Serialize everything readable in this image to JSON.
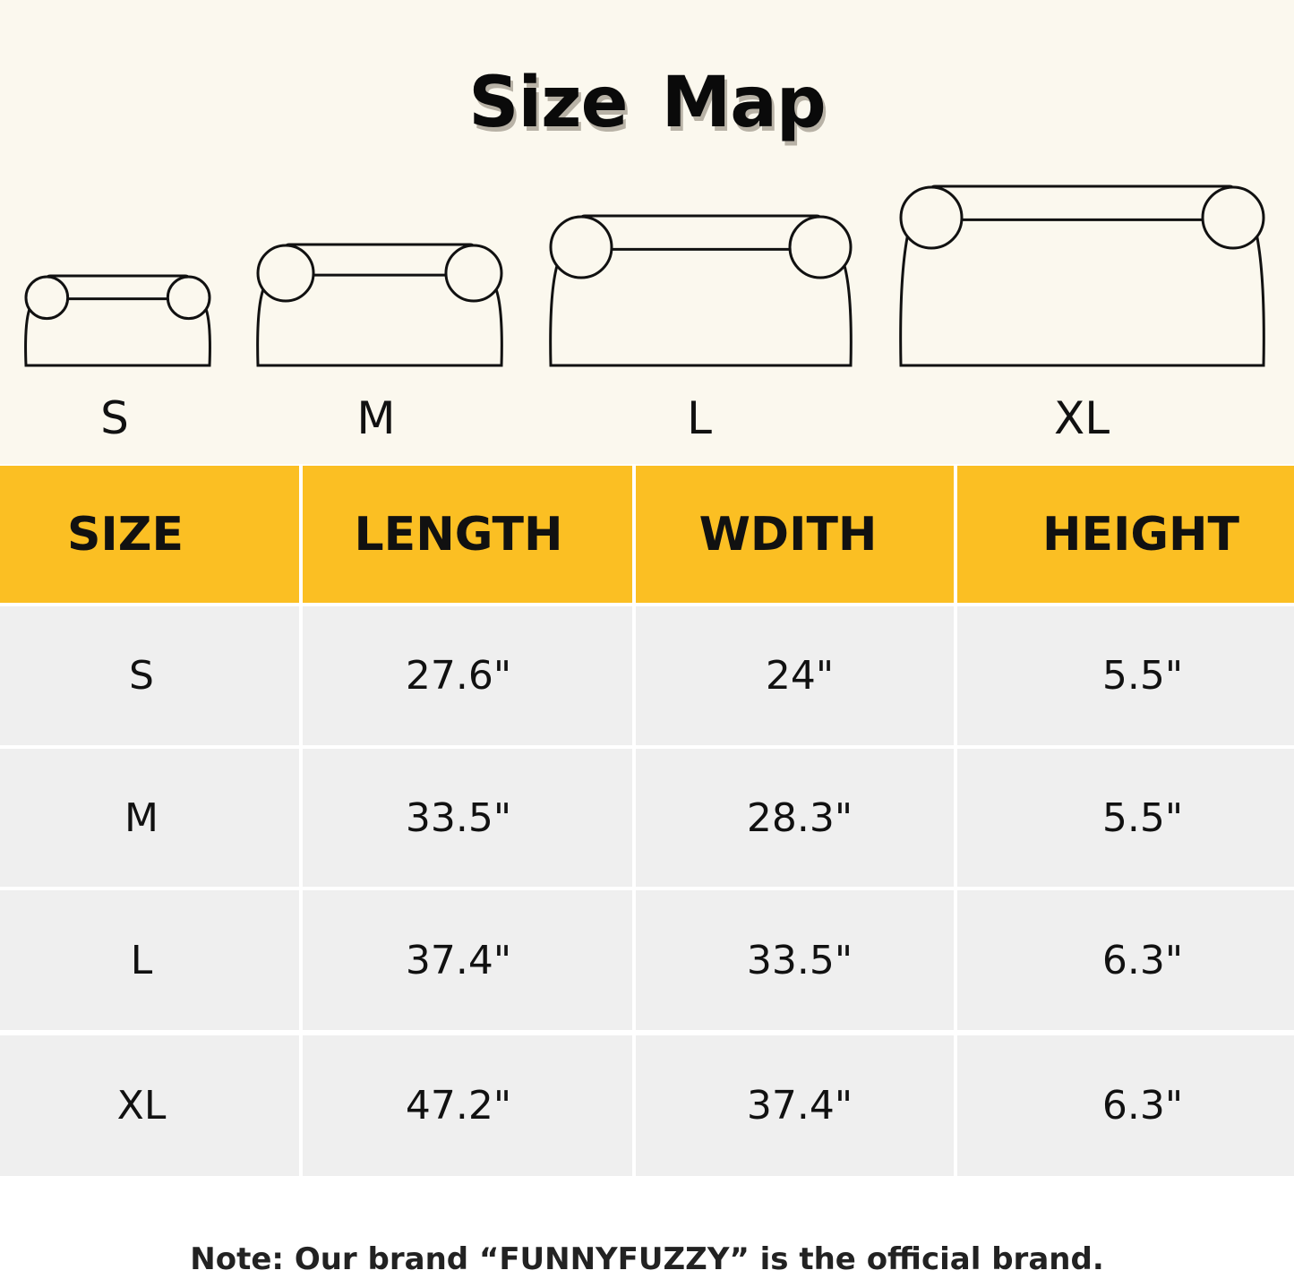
{
  "title": "Size Map",
  "sofa_sizes": [
    "S",
    "M",
    "L",
    "XL"
  ],
  "table": {
    "headers": [
      "SIZE",
      "LENGTH",
      "WDITH",
      "HEIGHT"
    ],
    "rows": [
      [
        "S",
        "27.6\"",
        "24\"",
        "5.5\""
      ],
      [
        "M",
        "33.5\"",
        "28.3\"",
        "5.5\""
      ],
      [
        "L",
        "37.4\"",
        "33.5\"",
        "6.3\""
      ],
      [
        "XL",
        "47.2\"",
        "37.4\"",
        "6.3\""
      ]
    ]
  },
  "note": "Note: Our brand “FUNNYFUZZY” is the official brand.",
  "colors": {
    "header": "#fbbf23",
    "row": "#efefef",
    "top_background": "#fbf8ee"
  }
}
